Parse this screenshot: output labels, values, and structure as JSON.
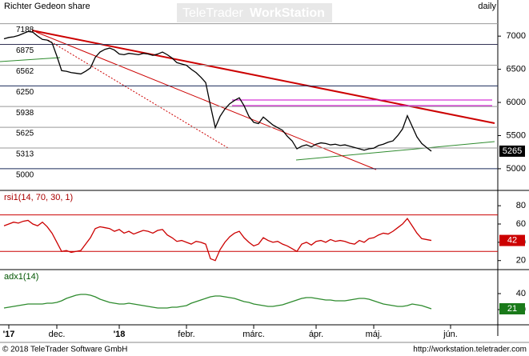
{
  "chart_data": [
    {
      "type": "line",
      "title": "Richter Gedeon share",
      "period": "daily",
      "color": "#000000",
      "values": [
        6960,
        6980,
        6990,
        7010,
        7040,
        7070,
        7060,
        7000,
        6950,
        6940,
        6900,
        6700,
        6480,
        6470,
        6450,
        6440,
        6430,
        6470,
        6520,
        6680,
        6760,
        6800,
        6820,
        6790,
        6730,
        6720,
        6740,
        6730,
        6720,
        6740,
        6730,
        6710,
        6730,
        6760,
        6720,
        6670,
        6600,
        6580,
        6560,
        6500,
        6450,
        6380,
        6300,
        5950,
        5620,
        5790,
        5900,
        5980,
        6030,
        6070,
        5950,
        5790,
        5700,
        5680,
        5780,
        5720,
        5660,
        5620,
        5580,
        5490,
        5420,
        5300,
        5340,
        5360,
        5330,
        5370,
        5390,
        5380,
        5360,
        5370,
        5350,
        5360,
        5340,
        5320,
        5300,
        5280,
        5300,
        5310,
        5350,
        5370,
        5400,
        5420,
        5500,
        5600,
        5800,
        5640,
        5480,
        5380,
        5320,
        5265,
        null,
        null,
        null,
        null
      ],
      "ylim": [
        4673,
        7545
      ],
      "yticks": [
        5000,
        5500,
        6000,
        6500,
        7000
      ],
      "levels": [
        7188,
        6875,
        6562,
        6250,
        5938,
        5625,
        5313,
        5000
      ],
      "level_colors": [
        "#999999",
        "#333355",
        "#999999",
        "#1a2a5a",
        "#999999",
        "#999999",
        "#999999",
        "#1a2a5a"
      ],
      "last_color": "#000000"
    },
    {
      "type": "line",
      "title": "rsi1(14, 70, 30, 1)",
      "color": "#cc0000",
      "values": [
        58,
        60,
        62,
        61,
        63,
        64,
        60,
        58,
        62,
        57,
        50,
        40,
        30,
        31,
        29,
        30,
        31,
        38,
        45,
        55,
        57,
        56,
        55,
        52,
        54,
        50,
        52,
        49,
        51,
        53,
        52,
        50,
        53,
        54,
        48,
        45,
        41,
        42,
        40,
        38,
        41,
        40,
        38,
        22,
        20,
        32,
        40,
        46,
        50,
        52,
        45,
        40,
        36,
        38,
        45,
        42,
        40,
        41,
        38,
        36,
        33,
        30,
        38,
        40,
        37,
        41,
        42,
        40,
        43,
        41,
        42,
        41,
        39,
        38,
        42,
        40,
        44,
        45,
        48,
        50,
        49,
        52,
        56,
        60,
        66,
        58,
        50,
        44,
        43,
        42,
        null,
        null,
        null,
        null
      ],
      "ylim": [
        11,
        95
      ],
      "yticks": [
        20,
        40,
        60,
        80
      ],
      "levels": [
        70,
        30
      ],
      "level_color": "#cc0000",
      "last_color": "#cc0000"
    },
    {
      "type": "line",
      "title": "adx1(14)",
      "color": "#2e8b2e",
      "values": [
        22,
        23,
        24,
        25,
        26,
        27,
        27,
        27,
        27,
        28,
        28,
        29,
        31,
        34,
        36,
        38,
        39,
        39,
        38,
        36,
        33,
        31,
        29,
        28,
        27,
        27,
        28,
        27,
        26,
        25,
        24,
        23,
        22,
        22,
        22,
        23,
        23,
        24,
        25,
        28,
        30,
        32,
        34,
        36,
        37,
        37,
        36,
        35,
        34,
        32,
        30,
        29,
        27,
        26,
        25,
        24,
        24,
        25,
        26,
        28,
        30,
        32,
        34,
        35,
        35,
        34,
        33,
        32,
        32,
        31,
        31,
        31,
        32,
        33,
        34,
        34,
        33,
        31,
        29,
        27,
        26,
        25,
        24,
        24,
        25,
        27,
        26,
        25,
        23,
        21,
        null,
        null,
        null,
        null
      ],
      "ylim": [
        2,
        69
      ],
      "yticks": [
        20,
        40
      ],
      "last_color": "#1a7a1a",
      "categories": [
        null,
        "'17",
        null,
        null,
        null,
        null,
        null,
        null,
        null,
        null,
        null,
        "dec.",
        null,
        null,
        null,
        null,
        null,
        null,
        null,
        null,
        null,
        null,
        null,
        null,
        "'18",
        null,
        null,
        null,
        null,
        null,
        null,
        null,
        null,
        null,
        null,
        null,
        null,
        null,
        "febr.",
        null,
        null,
        null,
        null,
        null,
        null,
        null,
        null,
        null,
        null,
        null,
        null,
        null,
        "márc.",
        null,
        null,
        null,
        null,
        null,
        null,
        null,
        null,
        null,
        null,
        null,
        null,
        "ápr.",
        null,
        null,
        null,
        null,
        null,
        null,
        null,
        null,
        null,
        null,
        null,
        "máj.",
        null,
        null,
        null,
        null,
        null,
        null,
        null,
        null,
        null,
        null,
        null,
        null,
        null,
        null,
        null,
        "jún."
      ]
    }
  ],
  "watermark": {
    "brand": "TeleTrader",
    "product": "WorkStation"
  },
  "footer": {
    "copyright": "© 2018 TeleTrader Software GmbH",
    "url": "http://workstation.teletrader.com"
  }
}
